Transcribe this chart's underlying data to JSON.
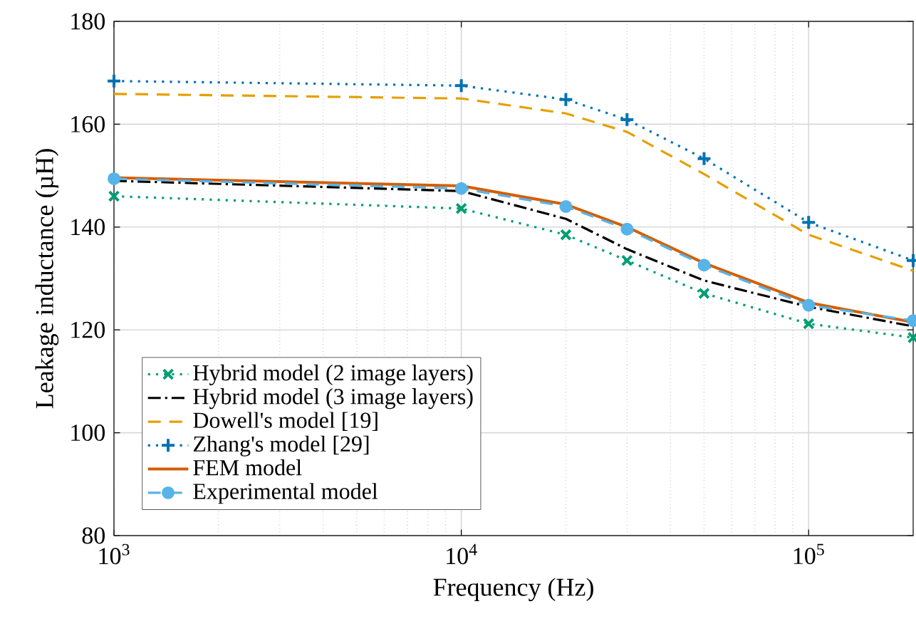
{
  "chart_data": {
    "type": "line",
    "xlabel": "Frequency (Hz)",
    "ylabel": "Leakage inductance (µH)",
    "x": [
      1000,
      10000,
      20000,
      30000,
      50000,
      100000,
      200000
    ],
    "series": [
      {
        "name": "Hybrid model (2 image layers)",
        "color": "#009e73",
        "marker": "cross",
        "line_style": "dotted",
        "values": [
          146,
          143.6,
          138.5,
          133.5,
          127.1,
          121.2,
          118.5
        ]
      },
      {
        "name": "Hybrid model (3 image layers)",
        "color": "#000000",
        "marker": "none",
        "line_style": "dashdot",
        "values": [
          149,
          147,
          141.6,
          135.7,
          129.6,
          124.5,
          120.7
        ]
      },
      {
        "name": "Dowell's model [19]",
        "color": "#e69f00",
        "marker": "none",
        "line_style": "dashed",
        "values": [
          165.9,
          165,
          162.1,
          158.5,
          150.3,
          138.5,
          131.5
        ]
      },
      {
        "name": "Zhang's model [29]",
        "color": "#0072b2",
        "marker": "plus",
        "line_style": "dotted",
        "values": [
          168.4,
          167.5,
          164.8,
          160.9,
          153.3,
          140.9,
          133.5
        ]
      },
      {
        "name": "FEM model",
        "color": "#d55e00",
        "marker": "none",
        "line_style": "solid",
        "values": [
          149.6,
          148,
          144.4,
          140,
          133,
          125.3,
          121.5
        ]
      },
      {
        "name": "Experimental model",
        "color": "#56b4e9",
        "marker": "circle",
        "line_style": "dashed",
        "values": [
          149.4,
          147.5,
          144,
          139.6,
          132.6,
          124.8,
          121.8
        ]
      }
    ],
    "log": "x",
    "xlim": [
      1000,
      200000
    ],
    "xticks": [
      {
        "value": 1000,
        "label": "10$^{3}$"
      },
      {
        "value": 10000,
        "label": "10$^{4}$"
      },
      {
        "value": 100000,
        "label": "10$^{5}$"
      }
    ],
    "ylim": [
      80,
      180
    ],
    "yticks": [
      80,
      100,
      120,
      140,
      160,
      180
    ],
    "grid": true,
    "legend": "bottom left"
  }
}
